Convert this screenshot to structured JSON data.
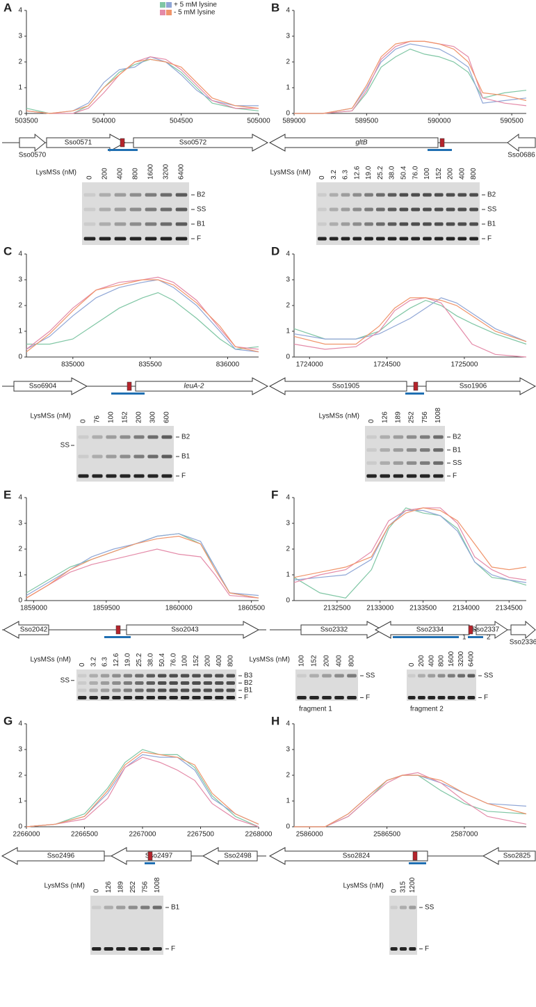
{
  "chart_data": [
    {
      "type": "line",
      "title": "A",
      "x": [
        503500,
        503650,
        503800,
        503900,
        504000,
        504100,
        504200,
        504300,
        504400,
        504500,
        504600,
        504700,
        504850,
        505000
      ],
      "series": [
        {
          "color": "#7fc6a4",
          "values": [
            0.2,
            0,
            0,
            0.3,
            1.0,
            1.6,
            1.9,
            2.1,
            2.0,
            1.6,
            1.0,
            0.4,
            0.2,
            0.1
          ]
        },
        {
          "color": "#8fa6d6",
          "values": [
            0.1,
            0,
            0.1,
            0.4,
            1.2,
            1.7,
            1.8,
            2.2,
            2.0,
            1.5,
            0.9,
            0.5,
            0.3,
            0.3
          ]
        },
        {
          "color": "#e48aa8",
          "values": [
            0.1,
            0,
            0,
            0.2,
            0.8,
            1.5,
            2.0,
            2.2,
            2.1,
            1.7,
            1.1,
            0.5,
            0.2,
            0.2
          ]
        },
        {
          "color": "#f0946a",
          "values": [
            0.1,
            0,
            0.1,
            0.3,
            1.0,
            1.5,
            2.0,
            2.1,
            2.0,
            1.8,
            1.2,
            0.6,
            0.3,
            0.2
          ]
        }
      ],
      "legend": [
        {
          "label": "+ 5 mM lysine",
          "colors": [
            "#7fc6a4",
            "#8fa6d6"
          ]
        },
        {
          "label": "- 5 mM lysine",
          "colors": [
            "#e48aa8",
            "#f0946a"
          ]
        }
      ],
      "xlim": [
        503500,
        505000
      ],
      "xticks": [
        503500,
        504000,
        504500,
        505000
      ],
      "ylim": [
        0,
        4
      ],
      "yticks": [
        0,
        1,
        2,
        3,
        4
      ],
      "genes": [
        "Sso0570",
        "Sso0571",
        "Sso0572"
      ],
      "gels": [
        {
          "lanes_title": "LysMSs (nM)",
          "lanes": [
            "0",
            "200",
            "400",
            "800",
            "1600",
            "3200",
            "6400"
          ],
          "bands": [
            "B2",
            "SS",
            "B1",
            "F"
          ]
        }
      ]
    },
    {
      "type": "line",
      "title": "B",
      "x": [
        589000,
        589200,
        589400,
        589500,
        589600,
        589700,
        589800,
        589900,
        590000,
        590100,
        590200,
        590300,
        590450,
        590600
      ],
      "series": [
        {
          "color": "#7fc6a4",
          "values": [
            0,
            0,
            0.1,
            0.8,
            1.8,
            2.2,
            2.5,
            2.3,
            2.2,
            2.0,
            1.6,
            0.6,
            0.8,
            0.9
          ]
        },
        {
          "color": "#8fa6d6",
          "values": [
            0,
            0,
            0.2,
            1.0,
            2.0,
            2.5,
            2.7,
            2.6,
            2.5,
            2.2,
            1.8,
            0.4,
            0.5,
            0.6
          ]
        },
        {
          "color": "#e48aa8",
          "values": [
            0,
            0,
            0.1,
            0.9,
            2.1,
            2.6,
            2.8,
            2.8,
            2.7,
            2.6,
            2.2,
            0.6,
            0.4,
            0.3
          ]
        },
        {
          "color": "#f0946a",
          "values": [
            0,
            0,
            0.2,
            1.1,
            2.2,
            2.7,
            2.8,
            2.8,
            2.7,
            2.5,
            2.0,
            0.8,
            0.7,
            0.5
          ]
        }
      ],
      "xlim": [
        589000,
        590600
      ],
      "xticks": [
        589000,
        589500,
        590000,
        590500
      ],
      "ylim": [
        0,
        4
      ],
      "yticks": [
        0,
        1,
        2,
        3,
        4
      ],
      "genes": [
        "gltB",
        "Sso0686"
      ],
      "gels": [
        {
          "lanes_title": "LysMSs (nM)",
          "lanes": [
            "0",
            "3.2",
            "6.3",
            "12.6",
            "19.0",
            "25.2",
            "38.0",
            "50.4",
            "76.0",
            "100",
            "152",
            "200",
            "400",
            "800"
          ],
          "bands": [
            "B2",
            "SS",
            "B1",
            "F"
          ]
        }
      ]
    },
    {
      "type": "line",
      "title": "C",
      "x": [
        834700,
        834850,
        835000,
        835150,
        835300,
        835450,
        835550,
        835650,
        835800,
        835950,
        836050,
        836200
      ],
      "series": [
        {
          "color": "#7fc6a4",
          "values": [
            0.5,
            0.5,
            0.7,
            1.3,
            1.9,
            2.3,
            2.5,
            2.2,
            1.5,
            0.7,
            0.3,
            0.4
          ]
        },
        {
          "color": "#8fa6d6",
          "values": [
            0.3,
            0.8,
            1.6,
            2.3,
            2.7,
            2.9,
            3.0,
            2.7,
            2.0,
            1.0,
            0.3,
            0.2
          ]
        },
        {
          "color": "#e48aa8",
          "values": [
            0.3,
            1.0,
            1.9,
            2.6,
            2.9,
            3.0,
            3.1,
            2.9,
            2.2,
            1.1,
            0.4,
            0.3
          ]
        },
        {
          "color": "#f0946a",
          "values": [
            0.2,
            0.9,
            1.8,
            2.6,
            2.8,
            3.0,
            3.0,
            2.8,
            2.1,
            1.2,
            0.4,
            0.2
          ]
        }
      ],
      "xlim": [
        834700,
        836200
      ],
      "xticks": [
        835000,
        835500,
        836000
      ],
      "ylim": [
        0,
        4
      ],
      "yticks": [
        0,
        1,
        2,
        3,
        4
      ],
      "genes": [
        "Sso6904",
        "leuA-2"
      ],
      "gels": [
        {
          "lanes_title": "LysMSs (nM)",
          "lanes": [
            "0",
            "76",
            "100",
            "152",
            "200",
            "300",
            "600"
          ],
          "bands": [
            "B2",
            "B1",
            "F"
          ],
          "left_bands": [
            "SS"
          ]
        }
      ]
    },
    {
      "type": "line",
      "title": "D",
      "x": [
        1723900,
        1724100,
        1724300,
        1724450,
        1724550,
        1724650,
        1724750,
        1724850,
        1724950,
        1725050,
        1725200,
        1725400
      ],
      "series": [
        {
          "color": "#7fc6a4",
          "values": [
            1.1,
            0.7,
            0.7,
            1.0,
            1.5,
            1.9,
            2.2,
            2.0,
            1.6,
            1.3,
            0.9,
            0.5
          ]
        },
        {
          "color": "#8fa6d6",
          "values": [
            0.9,
            0.7,
            0.7,
            0.9,
            1.2,
            1.5,
            1.9,
            2.3,
            2.1,
            1.7,
            1.1,
            0.6
          ]
        },
        {
          "color": "#e48aa8",
          "values": [
            0.5,
            0.3,
            0.4,
            1.0,
            1.8,
            2.2,
            2.3,
            2.1,
            1.3,
            0.5,
            0.1,
            0
          ]
        },
        {
          "color": "#f0946a",
          "values": [
            0.8,
            0.5,
            0.5,
            1.2,
            1.9,
            2.3,
            2.3,
            2.2,
            2.0,
            1.6,
            1.0,
            0.6
          ]
        }
      ],
      "xlim": [
        1723900,
        1725400
      ],
      "xticks": [
        1724000,
        1724500,
        1725000
      ],
      "ylim": [
        0,
        4
      ],
      "yticks": [
        0,
        1,
        2,
        3,
        4
      ],
      "genes": [
        "Sso1905",
        "Sso1906"
      ],
      "gels": [
        {
          "lanes_title": "LysMSs (nM)",
          "lanes": [
            "0",
            "126",
            "189",
            "252",
            "756",
            "1008"
          ],
          "bands": [
            "B2",
            "B1",
            "SS",
            "F"
          ]
        }
      ]
    },
    {
      "type": "line",
      "title": "E",
      "x": [
        1858950,
        1859100,
        1859250,
        1859400,
        1859550,
        1859700,
        1859850,
        1860000,
        1860150,
        1860250,
        1860350,
        1860550
      ],
      "series": [
        {
          "color": "#7fc6a4",
          "values": [
            0.3,
            0.8,
            1.3,
            1.6,
            1.9,
            2.2,
            2.5,
            2.6,
            2.2,
            1.3,
            0.3,
            0.1
          ]
        },
        {
          "color": "#8fa6d6",
          "values": [
            0.2,
            0.7,
            1.2,
            1.7,
            2.0,
            2.2,
            2.5,
            2.6,
            2.3,
            1.3,
            0.3,
            0.2
          ]
        },
        {
          "color": "#e48aa8",
          "values": [
            0.1,
            0.6,
            1.1,
            1.4,
            1.6,
            1.8,
            2.0,
            1.8,
            1.7,
            1.0,
            0.2,
            0.1
          ]
        },
        {
          "color": "#f0946a",
          "values": [
            0.1,
            0.6,
            1.2,
            1.6,
            1.9,
            2.2,
            2.4,
            2.5,
            2.2,
            1.2,
            0.3,
            0.1
          ]
        }
      ],
      "xlim": [
        1858950,
        1860550
      ],
      "xticks": [
        1859000,
        1859500,
        1860000,
        1860500
      ],
      "ylim": [
        0,
        4
      ],
      "yticks": [
        0,
        1,
        2,
        3,
        4
      ],
      "genes": [
        "Sso2042",
        "Sso2043"
      ],
      "gels": [
        {
          "lanes_title": "LysMSs (nM)",
          "lanes": [
            "0",
            "3.2",
            "6.3",
            "12.6",
            "19.0",
            "25.2",
            "38.0",
            "50.4",
            "76.0",
            "100",
            "152",
            "200",
            "400",
            "800"
          ],
          "bands": [
            "B3",
            "B2",
            "B1",
            "F"
          ],
          "left_bands": [
            "SS"
          ]
        }
      ]
    },
    {
      "type": "line",
      "title": "F",
      "x": [
        2132000,
        2132300,
        2132600,
        2132900,
        2133100,
        2133300,
        2133500,
        2133700,
        2133900,
        2134100,
        2134300,
        2134500,
        2134700
      ],
      "series": [
        {
          "color": "#7fc6a4",
          "values": [
            0.9,
            0.3,
            0.1,
            1.2,
            2.8,
            3.6,
            3.4,
            3.3,
            2.8,
            1.5,
            0.9,
            0.8,
            0.6
          ]
        },
        {
          "color": "#8fa6d6",
          "values": [
            0.8,
            0.9,
            1.0,
            1.6,
            2.9,
            3.5,
            3.5,
            3.3,
            2.7,
            1.5,
            1.0,
            0.8,
            0.7
          ]
        },
        {
          "color": "#e48aa8",
          "values": [
            0.7,
            1.0,
            1.2,
            1.9,
            3.1,
            3.5,
            3.6,
            3.6,
            3.0,
            1.7,
            1.2,
            0.9,
            0.8
          ]
        },
        {
          "color": "#f0946a",
          "values": [
            0.9,
            1.1,
            1.3,
            1.7,
            2.9,
            3.4,
            3.6,
            3.5,
            3.1,
            2.2,
            1.3,
            1.2,
            1.3
          ]
        }
      ],
      "xlim": [
        2132000,
        2134700
      ],
      "xticks": [
        2132500,
        2133000,
        2133500,
        2134000,
        2134500
      ],
      "ylim": [
        0,
        4
      ],
      "yticks": [
        0,
        1,
        2,
        3,
        4
      ],
      "genes": [
        "Sso2332",
        "Sso2334",
        "Sso2337",
        "Sso2336"
      ],
      "fragments": [
        "1",
        "2"
      ],
      "gels": [
        {
          "lanes_title": "LysMSs (nM)",
          "lanes": [
            "100",
            "152",
            "200",
            "400",
            "800"
          ],
          "bands": [
            "SS",
            "F"
          ],
          "caption": "fragment 1"
        },
        {
          "lanes": [
            "0",
            "200",
            "400",
            "800",
            "1600",
            "3200",
            "6400"
          ],
          "bands": [
            "SS",
            "F"
          ],
          "caption": "fragment 2"
        }
      ]
    },
    {
      "type": "line",
      "title": "G",
      "x": [
        2266000,
        2266250,
        2266500,
        2266700,
        2266850,
        2267000,
        2267150,
        2267300,
        2267450,
        2267600,
        2267800,
        2268000
      ],
      "series": [
        {
          "color": "#7fc6a4",
          "values": [
            0,
            0.1,
            0.5,
            1.5,
            2.5,
            3.0,
            2.8,
            2.8,
            2.3,
            1.2,
            0.4,
            0
          ]
        },
        {
          "color": "#8fa6d6",
          "values": [
            0,
            0.1,
            0.4,
            1.3,
            2.3,
            2.8,
            2.7,
            2.7,
            2.2,
            1.1,
            0.5,
            0.1
          ]
        },
        {
          "color": "#e48aa8",
          "values": [
            0,
            0.1,
            0.3,
            1.1,
            2.3,
            2.7,
            2.5,
            2.2,
            1.8,
            0.9,
            0.3,
            0
          ]
        },
        {
          "color": "#f0946a",
          "values": [
            0,
            0.1,
            0.4,
            1.4,
            2.4,
            2.9,
            2.8,
            2.7,
            2.4,
            1.3,
            0.5,
            0.1
          ]
        }
      ],
      "xlim": [
        2266000,
        2268000
      ],
      "xticks": [
        2266000,
        2266500,
        2267000,
        2267500,
        2268000
      ],
      "ylim": [
        0,
        4
      ],
      "yticks": [
        0,
        1,
        2,
        3,
        4
      ],
      "genes": [
        "Sso2496",
        "Sso2497",
        "Sso2498"
      ],
      "gels": [
        {
          "lanes_title": "LysMSs (nM)",
          "lanes": [
            "0",
            "126",
            "189",
            "252",
            "756",
            "1008"
          ],
          "bands": [
            "B1",
            "F"
          ]
        }
      ]
    },
    {
      "type": "line",
      "title": "H",
      "x": [
        2585900,
        2586100,
        2586250,
        2586400,
        2586500,
        2586600,
        2586700,
        2586850,
        2587000,
        2587150,
        2587400
      ],
      "series": [
        {
          "color": "#7fc6a4",
          "values": [
            0,
            0,
            0.4,
            1.2,
            1.8,
            2.0,
            2.0,
            1.4,
            0.9,
            0.6,
            0.5
          ]
        },
        {
          "color": "#8fa6d6",
          "values": [
            0,
            0,
            0.5,
            1.3,
            1.8,
            2.0,
            2.0,
            1.7,
            1.3,
            0.9,
            0.8
          ]
        },
        {
          "color": "#e48aa8",
          "values": [
            0,
            0,
            0.4,
            1.2,
            1.7,
            2.0,
            2.1,
            1.7,
            1.0,
            0.4,
            0.1
          ]
        },
        {
          "color": "#f0946a",
          "values": [
            0,
            0,
            0.5,
            1.3,
            1.8,
            2.0,
            2.0,
            1.8,
            1.3,
            0.9,
            0.5
          ]
        }
      ],
      "xlim": [
        2585900,
        2587400
      ],
      "xticks": [
        2586000,
        2586500,
        2587000
      ],
      "ylim": [
        0,
        4
      ],
      "yticks": [
        0,
        1,
        2,
        3,
        4
      ],
      "genes": [
        "Sso2824",
        "Sso2825"
      ],
      "gels": [
        {
          "lanes_title": "LysMSs (nM)",
          "lanes": [
            "0",
            "315",
            "1200"
          ],
          "bands": [
            "SS",
            "F"
          ]
        }
      ]
    }
  ]
}
